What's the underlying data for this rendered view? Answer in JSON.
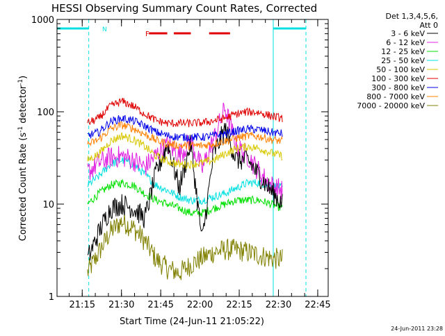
{
  "chart_data": {
    "type": "line",
    "title": "HESSI Observing Summary Count Rates, Corrected",
    "xlabel": "Start Time (24-Jun-11 21:05:22)",
    "ylabel_main": "Corrected Count Rate (s",
    "ylabel_sup1": "-1",
    "ylabel_mid": " detector",
    "ylabel_sup2": "-1",
    "ylabel_end": ")",
    "y_scale": "log",
    "ylim": [
      1,
      1000
    ],
    "xlim": [
      "21:05:22",
      "22:49:00"
    ],
    "x_ticks": [
      "21:15",
      "21:30",
      "21:45",
      "22:00",
      "22:15",
      "22:30",
      "22:45"
    ],
    "y_ticks": [
      "1",
      "10",
      "100",
      "1000"
    ],
    "detector_label": "Det 1,3,4,5,6,",
    "attenuator_label": "Att 0",
    "timestamp": "24-Jun-2011 23:28",
    "night_marker_label": "N",
    "flare_marker_label": "F",
    "legend_position": "right",
    "series": [
      {
        "name": "3 - 6 keV",
        "color": "#000000",
        "values": [
          2.5,
          5,
          9,
          10,
          9,
          7,
          22,
          45,
          15,
          45,
          4,
          35,
          65,
          30,
          30,
          20,
          14,
          10
        ]
      },
      {
        "name": "6 - 12 keV",
        "color": "#e020e0",
        "values": [
          22,
          28,
          32,
          33,
          30,
          25,
          34,
          44,
          34,
          48,
          24,
          50,
          110,
          42,
          33,
          22,
          16,
          14
        ]
      },
      {
        "name": "12 - 25 keV",
        "color": "#00e000",
        "values": [
          10,
          13,
          16,
          17,
          16,
          13,
          11,
          10,
          9,
          8,
          8,
          9,
          10,
          11,
          11,
          11,
          10,
          9
        ]
      },
      {
        "name": "25 - 50 keV",
        "color": "#00e0e0",
        "values": [
          16,
          20,
          27,
          30,
          27,
          21,
          16,
          14,
          12,
          11,
          11,
          12,
          13,
          15,
          17,
          17,
          16,
          15
        ]
      },
      {
        "name": "50 - 100 keV",
        "color": "#d8c800",
        "values": [
          30,
          35,
          48,
          55,
          50,
          42,
          33,
          29,
          27,
          27,
          28,
          30,
          35,
          40,
          42,
          40,
          36,
          33
        ]
      },
      {
        "name": "100 - 300 keV",
        "color": "#e00000",
        "values": [
          75,
          85,
          115,
          130,
          115,
          95,
          80,
          75,
          75,
          75,
          76,
          80,
          85,
          95,
          100,
          98,
          90,
          85
        ]
      },
      {
        "name": "300 - 800 keV",
        "color": "#0000e8",
        "values": [
          55,
          60,
          78,
          85,
          80,
          70,
          60,
          55,
          53,
          53,
          53,
          55,
          58,
          62,
          65,
          64,
          60,
          58
        ]
      },
      {
        "name": "800 - 7000 keV",
        "color": "#ff8000",
        "values": [
          44,
          50,
          65,
          72,
          66,
          57,
          49,
          45,
          43,
          43,
          43,
          45,
          48,
          52,
          55,
          54,
          50,
          48
        ]
      },
      {
        "name": "7000 - 20000 keV",
        "color": "#808000",
        "values": [
          1.8,
          3,
          5,
          6.5,
          5.5,
          4,
          2.5,
          2,
          1.8,
          2.2,
          2.6,
          3,
          3.2,
          3.2,
          3,
          2.8,
          2.6,
          2.5
        ]
      }
    ]
  }
}
